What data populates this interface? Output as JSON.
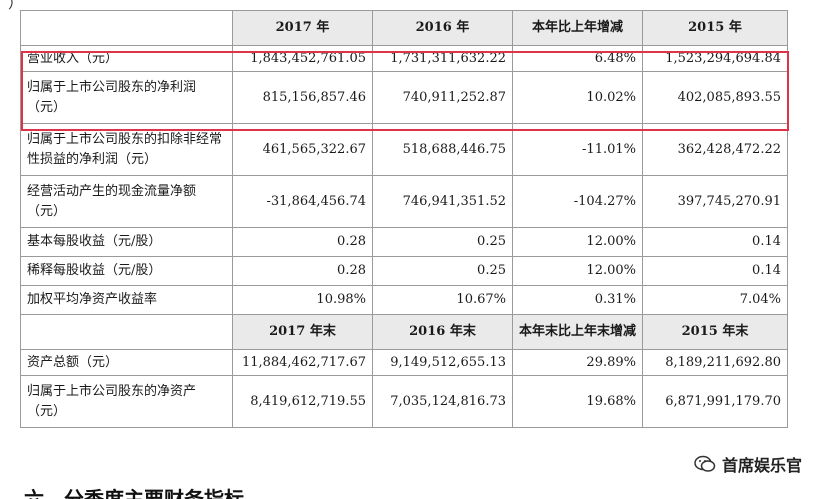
{
  "top_remnant": "）",
  "header_1": [
    "",
    "2017 年",
    "2016 年",
    "本年比上年增减",
    "2015 年"
  ],
  "header_2": [
    "",
    "2017 年末",
    "2016 年末",
    "本年末比上年末增减",
    "2015 年末"
  ],
  "rows_1": [
    {
      "label": "营业收入（元）",
      "v2017": "1,843,452,761.05",
      "v2016": "1,731,311,632.22",
      "change": "6.48%",
      "v2015": "1,523,294,694.84"
    },
    {
      "label": "归属于上市公司股东的净利润（元）",
      "v2017": "815,156,857.46",
      "v2016": "740,911,252.87",
      "change": "10.02%",
      "v2015": "402,085,893.55"
    },
    {
      "label": "归属于上市公司股东的扣除非经常性损益的净利润（元）",
      "v2017": "461,565,322.67",
      "v2016": "518,688,446.75",
      "change": "-11.01%",
      "v2015": "362,428,472.22"
    },
    {
      "label": "经营活动产生的现金流量净额（元）",
      "v2017": "-31,864,456.74",
      "v2016": "746,941,351.52",
      "change": "-104.27%",
      "v2015": "397,745,270.91"
    },
    {
      "label": "基本每股收益（元/股）",
      "v2017": "0.28",
      "v2016": "0.25",
      "change": "12.00%",
      "v2015": "0.14"
    },
    {
      "label": "稀释每股收益（元/股）",
      "v2017": "0.28",
      "v2016": "0.25",
      "change": "12.00%",
      "v2015": "0.14"
    },
    {
      "label": "加权平均净资产收益率",
      "v2017": "10.98%",
      "v2016": "10.67%",
      "change": "0.31%",
      "v2015": "7.04%"
    }
  ],
  "rows_2": [
    {
      "label": "资产总额（元）",
      "v2017": "11,884,462,717.67",
      "v2016": "9,149,512,655.13",
      "change": "29.89%",
      "v2015": "8,189,211,692.80"
    },
    {
      "label": "归属于上市公司股东的净资产（元）",
      "v2017": "8,419,612,719.55",
      "v2016": "7,035,124,816.73",
      "change": "19.68%",
      "v2015": "6,871,991,179.70"
    }
  ],
  "watermark": "首席娱乐官",
  "bottom_heading": "六、分季度主要财务指标",
  "colors": {
    "highlight": "#e0334a",
    "header_bg": "#eaeaea",
    "border": "#9a9a9a"
  }
}
